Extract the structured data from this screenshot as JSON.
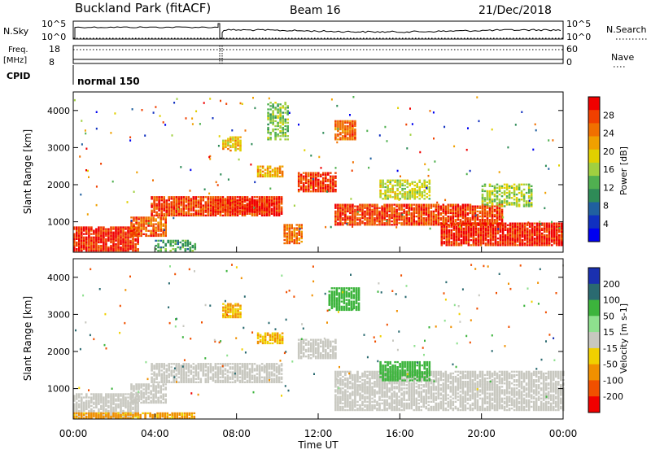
{
  "header": {
    "station": "Buckland Park (fitACF)",
    "beam": "Beam 16",
    "date": "21/Dec/2018"
  },
  "status_panels": {
    "nsky_label": "N.Sky",
    "nsky_ticks": [
      "10^5",
      "10^0"
    ],
    "nsearch_label": "N.Search",
    "nsearch_ticks": [
      "10^5",
      "10^0"
    ],
    "freq_label_1": "Freq.",
    "freq_label_2": "[MHz]",
    "freq_ticks": [
      "18",
      "8"
    ],
    "nave_label": "Nave",
    "nave_ticks": [
      "60",
      "0"
    ],
    "cpid_label": "CPID",
    "cpid_value": "normal 150"
  },
  "chart_data": [
    {
      "type": "heatmap",
      "name": "power",
      "ylabel": "Slant Range [km]",
      "yticks": [
        "4000",
        "3000",
        "2000",
        "1000"
      ],
      "ylim": [
        180,
        4500
      ],
      "colorbar_label": "Power [dB]",
      "colorbar_ticks": [
        "28",
        "24",
        "20",
        "16",
        "12",
        "8",
        "4"
      ],
      "colorbar_colors": [
        "#f00000",
        "#f04000",
        "#f07000",
        "#f0a000",
        "#e0d000",
        "#a0d040",
        "#50b050",
        "#2e8b57",
        "#2060a0",
        "#1030c0",
        "#0000f0"
      ],
      "regions": [
        {
          "t0": 0.0,
          "t1": 3.2,
          "r0": 200,
          "r1": 850,
          "level": 0.95
        },
        {
          "t0": 2.8,
          "t1": 4.5,
          "r0": 600,
          "r1": 1100,
          "level": 0.85
        },
        {
          "t0": 3.8,
          "t1": 10.2,
          "r0": 1150,
          "r1": 1650,
          "level": 0.9
        },
        {
          "t0": 6.8,
          "t1": 9.6,
          "r0": 1250,
          "r1": 1600,
          "level": 0.95
        },
        {
          "t0": 10.3,
          "t1": 11.2,
          "r0": 400,
          "r1": 900,
          "level": 0.8
        },
        {
          "t0": 11.0,
          "t1": 12.8,
          "r0": 1800,
          "r1": 2300,
          "level": 0.92
        },
        {
          "t0": 12.8,
          "t1": 21.0,
          "r0": 900,
          "r1": 1450,
          "level": 0.9
        },
        {
          "t0": 18.0,
          "t1": 24.0,
          "r0": 350,
          "r1": 950,
          "level": 0.95
        },
        {
          "t0": 12.8,
          "t1": 13.8,
          "r0": 3200,
          "r1": 3700,
          "level": 0.85
        },
        {
          "t0": 7.3,
          "t1": 8.2,
          "r0": 2900,
          "r1": 3300,
          "level": 0.65
        },
        {
          "t0": 9.0,
          "t1": 10.2,
          "r0": 2200,
          "r1": 2500,
          "level": 0.7
        },
        {
          "t0": 15.0,
          "t1": 17.5,
          "r0": 1600,
          "r1": 2100,
          "level": 0.55
        },
        {
          "t0": 20.0,
          "t1": 22.5,
          "r0": 1400,
          "r1": 2000,
          "level": 0.5
        },
        {
          "t0": 9.5,
          "t1": 10.5,
          "r0": 3200,
          "r1": 4200,
          "level": 0.45
        },
        {
          "t0": 4.0,
          "t1": 6.0,
          "r0": 200,
          "r1": 500,
          "level": 0.35
        }
      ]
    },
    {
      "type": "heatmap",
      "name": "velocity",
      "ylabel": "Slant Range [km]",
      "yticks": [
        "4000",
        "3000",
        "2000",
        "1000"
      ],
      "ylim": [
        180,
        4500
      ],
      "colorbar_label": "Velocity [m s-1]",
      "colorbar_ticks": [
        "200",
        "100",
        "50",
        "15",
        "-15",
        "-50",
        "-100",
        "-200"
      ],
      "colorbar_colors": [
        "#1a30b0",
        "#2a6a70",
        "#3cb43c",
        "#8ee08e",
        "#c8c8c0",
        "#f0d000",
        "#f09000",
        "#f05000",
        "#f00000"
      ],
      "regions": [
        {
          "t0": 0.0,
          "t1": 3.2,
          "r0": 200,
          "r1": 850,
          "v": 0
        },
        {
          "t0": 2.8,
          "t1": 4.5,
          "r0": 600,
          "r1": 1100,
          "v": 0
        },
        {
          "t0": 3.8,
          "t1": 10.2,
          "r0": 1150,
          "r1": 1650,
          "v": 0
        },
        {
          "t0": 11.0,
          "t1": 12.8,
          "r0": 1800,
          "r1": 2300,
          "v": 0
        },
        {
          "t0": 12.8,
          "t1": 24.0,
          "r0": 400,
          "r1": 1450,
          "v": 0
        },
        {
          "t0": 12.5,
          "t1": 14.0,
          "r0": 3100,
          "r1": 3700,
          "v": 60
        },
        {
          "t0": 15.0,
          "t1": 17.5,
          "r0": 1200,
          "r1": 1700,
          "v": 55
        },
        {
          "t0": 7.3,
          "t1": 8.2,
          "r0": 2900,
          "r1": 3300,
          "v": -30
        },
        {
          "t0": 9.0,
          "t1": 10.2,
          "r0": 2200,
          "r1": 2500,
          "v": -30
        },
        {
          "t0": 0.0,
          "t1": 6.0,
          "r0": 180,
          "r1": 350,
          "v": -40
        }
      ]
    }
  ],
  "x_axis": {
    "label": "Time UT",
    "ticks": [
      "00:00",
      "04:00",
      "08:00",
      "12:00",
      "16:00",
      "20:00",
      "00:00"
    ]
  }
}
